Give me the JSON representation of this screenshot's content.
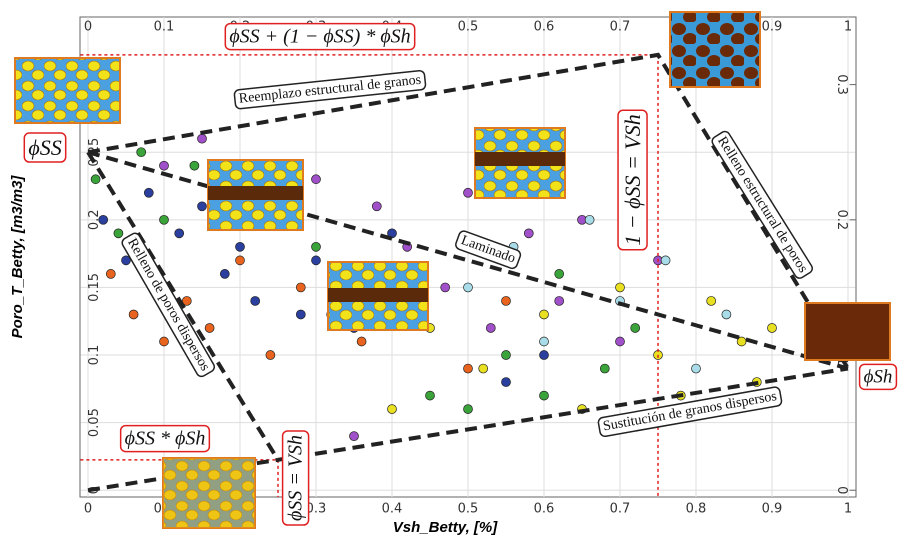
{
  "chart_data": {
    "type": "scatter",
    "x_label": "Vsh_Betty, [%]",
    "y_label": "Poro_T_Betty, [m3/m3]",
    "xlim": [
      -0.01,
      1.01
    ],
    "ylim": [
      -0.005,
      0.35
    ],
    "xticks": [
      0,
      0.1,
      0.2,
      0.3,
      0.4,
      0.5,
      0.6,
      0.7,
      0.8,
      0.9,
      1
    ],
    "yticks": [
      0,
      0.05,
      0.1,
      0.15,
      0.2,
      0.25
    ],
    "y2ticks": [
      0,
      0.1,
      0.2,
      0.3
    ],
    "series": [
      {
        "color": "#2b3f9e",
        "x": [
          0.02,
          0.05,
          0.08,
          0.1,
          0.12,
          0.15,
          0.18,
          0.2,
          0.22,
          0.25,
          0.28,
          0.3,
          0.35,
          0.4,
          0.55,
          0.6
        ],
        "y": [
          0.2,
          0.17,
          0.22,
          0.15,
          0.19,
          0.21,
          0.16,
          0.18,
          0.14,
          0.2,
          0.13,
          0.17,
          0.12,
          0.19,
          0.08,
          0.1
        ]
      },
      {
        "color": "#e8641e",
        "x": [
          0.03,
          0.06,
          0.1,
          0.13,
          0.16,
          0.2,
          0.24,
          0.28,
          0.32,
          0.36,
          0.42,
          0.5,
          0.55
        ],
        "y": [
          0.16,
          0.13,
          0.11,
          0.14,
          0.12,
          0.17,
          0.1,
          0.15,
          0.13,
          0.11,
          0.16,
          0.09,
          0.14
        ]
      },
      {
        "color": "#3aa33a",
        "x": [
          0.01,
          0.04,
          0.07,
          0.1,
          0.14,
          0.2,
          0.3,
          0.45,
          0.5,
          0.55,
          0.6,
          0.62,
          0.68,
          0.72
        ],
        "y": [
          0.23,
          0.19,
          0.25,
          0.2,
          0.24,
          0.22,
          0.18,
          0.07,
          0.06,
          0.1,
          0.07,
          0.16,
          0.09,
          0.12
        ]
      },
      {
        "color": "#a050c8",
        "x": [
          0.1,
          0.15,
          0.25,
          0.3,
          0.38,
          0.42,
          0.47,
          0.5,
          0.53,
          0.58,
          0.62,
          0.65,
          0.7,
          0.75,
          0.35
        ],
        "y": [
          0.24,
          0.26,
          0.2,
          0.23,
          0.21,
          0.18,
          0.15,
          0.22,
          0.12,
          0.19,
          0.14,
          0.2,
          0.11,
          0.17,
          0.04
        ]
      },
      {
        "color": "#e8e020",
        "x": [
          0.4,
          0.45,
          0.52,
          0.6,
          0.65,
          0.7,
          0.75,
          0.78,
          0.82,
          0.86,
          0.88,
          0.9
        ],
        "y": [
          0.06,
          0.12,
          0.09,
          0.13,
          0.06,
          0.15,
          0.1,
          0.07,
          0.14,
          0.11,
          0.08,
          0.12
        ]
      },
      {
        "color": "#a8dce8",
        "x": [
          0.5,
          0.56,
          0.6,
          0.66,
          0.7,
          0.76,
          0.8,
          0.84
        ],
        "y": [
          0.15,
          0.18,
          0.11,
          0.2,
          0.14,
          0.17,
          0.09,
          0.13
        ]
      }
    ],
    "model_lines": [
      {
        "x": [
          0,
          0.75,
          1
        ],
        "y": [
          0.25,
          0.322,
          0.09
        ]
      },
      {
        "x": [
          0,
          1
        ],
        "y": [
          0.25,
          0.09
        ]
      },
      {
        "x": [
          0,
          0.25,
          1
        ],
        "y": [
          0.25,
          0.0225,
          0.09
        ]
      },
      {
        "x": [
          0,
          0.25
        ],
        "y": [
          0,
          0.0225
        ]
      }
    ],
    "cutoffs": [
      {
        "x": 0.75,
        "y": 0.322
      },
      {
        "x": 0.25,
        "y": 0.0225
      }
    ],
    "annotations": [
      "Reemplazo estructural de granos",
      "Relleno estructural de poros",
      "Laminado",
      "Relleno de poros dispersos",
      "Sustitución de granos dispersos",
      "ϕSS + (1 − ϕSS) * ϕSh",
      "ϕSS",
      "ϕSh",
      "ϕSS * ϕSh",
      "1 − ϕSS = VSh",
      "ϕSS = VSh"
    ]
  }
}
